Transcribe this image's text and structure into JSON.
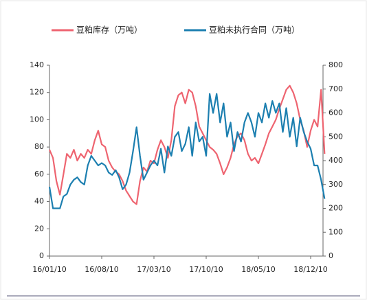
{
  "chart_data": {
    "type": "line",
    "categories": [
      "16/01/10",
      null,
      null,
      null,
      null,
      null,
      null,
      null,
      null,
      null,
      null,
      null,
      null,
      null,
      null,
      "16/08/10",
      null,
      null,
      null,
      null,
      null,
      null,
      null,
      null,
      null,
      null,
      null,
      null,
      null,
      null,
      "17/03/10",
      null,
      null,
      null,
      null,
      null,
      null,
      null,
      null,
      null,
      null,
      null,
      null,
      null,
      null,
      "17/10/10",
      null,
      null,
      null,
      null,
      null,
      null,
      null,
      null,
      null,
      null,
      null,
      null,
      null,
      null,
      "18/05/10",
      null,
      null,
      null,
      null,
      null,
      null,
      null,
      null,
      null,
      null,
      null,
      null,
      null,
      null,
      "18/12/10",
      null,
      null,
      null,
      null
    ],
    "series": [
      {
        "name": "豆粕库存（万吨）",
        "color": "#ee6470",
        "values": [
          78,
          72,
          55,
          45,
          60,
          75,
          72,
          78,
          70,
          75,
          72,
          78,
          75,
          85,
          92,
          82,
          80,
          70,
          65,
          62,
          60,
          55,
          48,
          44,
          40,
          38,
          55,
          65,
          62,
          70,
          68,
          78,
          85,
          80,
          72,
          85,
          110,
          118,
          120,
          112,
          122,
          120,
          110,
          95,
          90,
          85,
          80,
          78,
          75,
          68,
          60,
          65,
          72,
          82,
          88,
          90,
          85,
          75,
          70,
          72,
          68,
          75,
          82,
          90,
          95,
          100,
          108,
          115,
          122,
          125,
          120,
          112,
          100,
          92,
          80,
          92,
          100,
          95,
          122,
          75
        ]
      },
      {
        "name": "豆粕未执行合同（万吨）",
        "color": "#1c7fb0",
        "axis": "y2",
        "values": [
          290,
          200,
          200,
          200,
          250,
          260,
          300,
          320,
          330,
          310,
          300,
          380,
          420,
          400,
          380,
          390,
          380,
          350,
          340,
          360,
          330,
          280,
          300,
          350,
          440,
          540,
          420,
          320,
          350,
          380,
          400,
          380,
          450,
          350,
          460,
          420,
          500,
          520,
          440,
          470,
          540,
          420,
          560,
          480,
          500,
          420,
          680,
          600,
          680,
          560,
          640,
          500,
          560,
          440,
          520,
          480,
          560,
          600,
          560,
          500,
          600,
          560,
          640,
          580,
          650,
          600,
          640,
          520,
          620,
          500,
          580,
          460,
          580,
          520,
          480,
          450,
          380,
          380,
          320,
          240
        ]
      }
    ],
    "ylim": [
      0,
      140
    ],
    "yticks": [
      0,
      20,
      40,
      60,
      80,
      100,
      120,
      140
    ],
    "y2lim": [
      0,
      800
    ],
    "y2ticks": [
      0,
      100,
      200,
      300,
      400,
      500,
      600,
      700,
      800
    ],
    "legend": "top"
  }
}
